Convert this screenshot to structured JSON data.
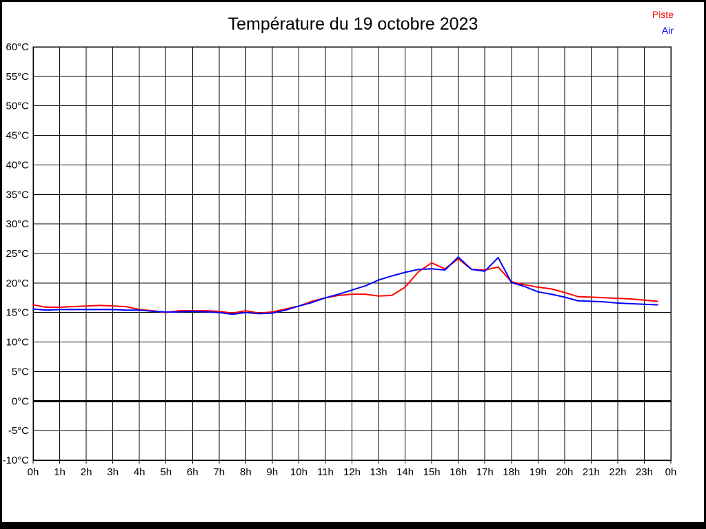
{
  "page": {
    "background": "#ffffff",
    "border_color": "#000000"
  },
  "legend": {
    "position": "top-right",
    "entries": [
      "Piste",
      "Air"
    ]
  },
  "chart_data": {
    "type": "line",
    "title": "Température du 19 octobre 2023",
    "xlabel": "",
    "ylabel": "",
    "xlim": [
      0,
      24
    ],
    "ylim": [
      -10,
      60
    ],
    "x_tick_step": 1,
    "y_tick_step": 5,
    "grid": "full",
    "grid_color": "#000000",
    "zero_line_emphasis": true,
    "legend_position": "top-right",
    "x_tick_labels": [
      "0h",
      "1h",
      "2h",
      "3h",
      "4h",
      "5h",
      "6h",
      "7h",
      "8h",
      "9h",
      "10h",
      "11h",
      "12h",
      "13h",
      "14h",
      "15h",
      "16h",
      "17h",
      "18h",
      "19h",
      "20h",
      "21h",
      "22h",
      "23h",
      "0h"
    ],
    "y_tick_labels": [
      "60°C",
      "55°C",
      "50°C",
      "45°C",
      "40°C",
      "35°C",
      "30°C",
      "25°C",
      "20°C",
      "15°C",
      "10°C",
      "5°C",
      "0°C",
      "-5°C",
      "-10°C"
    ],
    "x": [
      0,
      0.5,
      1,
      1.5,
      2,
      2.5,
      3,
      3.5,
      4,
      4.5,
      5,
      5.5,
      6,
      6.5,
      7,
      7.5,
      8,
      8.5,
      9,
      9.5,
      10,
      10.5,
      11,
      11.5,
      12,
      12.5,
      13,
      13.5,
      14,
      14.5,
      15,
      15.5,
      16,
      16.5,
      17,
      17.5,
      18,
      18.5,
      19,
      19.5,
      20,
      20.5,
      21,
      21.5,
      22,
      22.5,
      23,
      23.5
    ],
    "series": [
      {
        "name": "Piste",
        "color": "#ff0000",
        "values": [
          16.3,
          15.9,
          15.9,
          16.0,
          16.1,
          16.2,
          16.1,
          16.0,
          15.5,
          15.3,
          15.0,
          15.3,
          15.3,
          15.3,
          15.2,
          14.9,
          15.3,
          14.9,
          15.1,
          15.6,
          16.1,
          16.9,
          17.5,
          17.9,
          18.1,
          18.1,
          17.8,
          17.9,
          19.3,
          21.9,
          23.4,
          22.4,
          24.1,
          22.3,
          22.2,
          22.7,
          20.2,
          19.7,
          19.3,
          19.0,
          18.4,
          17.7,
          17.6,
          17.5,
          17.4,
          17.3,
          17.1,
          16.9
        ]
      },
      {
        "name": "Air",
        "color": "#0000ff",
        "values": [
          15.6,
          15.4,
          15.5,
          15.5,
          15.5,
          15.5,
          15.5,
          15.4,
          15.4,
          15.2,
          15.1,
          15.1,
          15.2,
          15.1,
          15.0,
          14.7,
          15.0,
          14.8,
          14.9,
          15.4,
          16.1,
          16.7,
          17.5,
          18.1,
          18.8,
          19.5,
          20.5,
          21.2,
          21.8,
          22.3,
          22.4,
          22.2,
          24.4,
          22.3,
          22.0,
          24.3,
          20.1,
          19.4,
          18.5,
          18.1,
          17.6,
          17.0,
          16.9,
          16.8,
          16.6,
          16.5,
          16.4,
          16.3
        ]
      }
    ]
  }
}
